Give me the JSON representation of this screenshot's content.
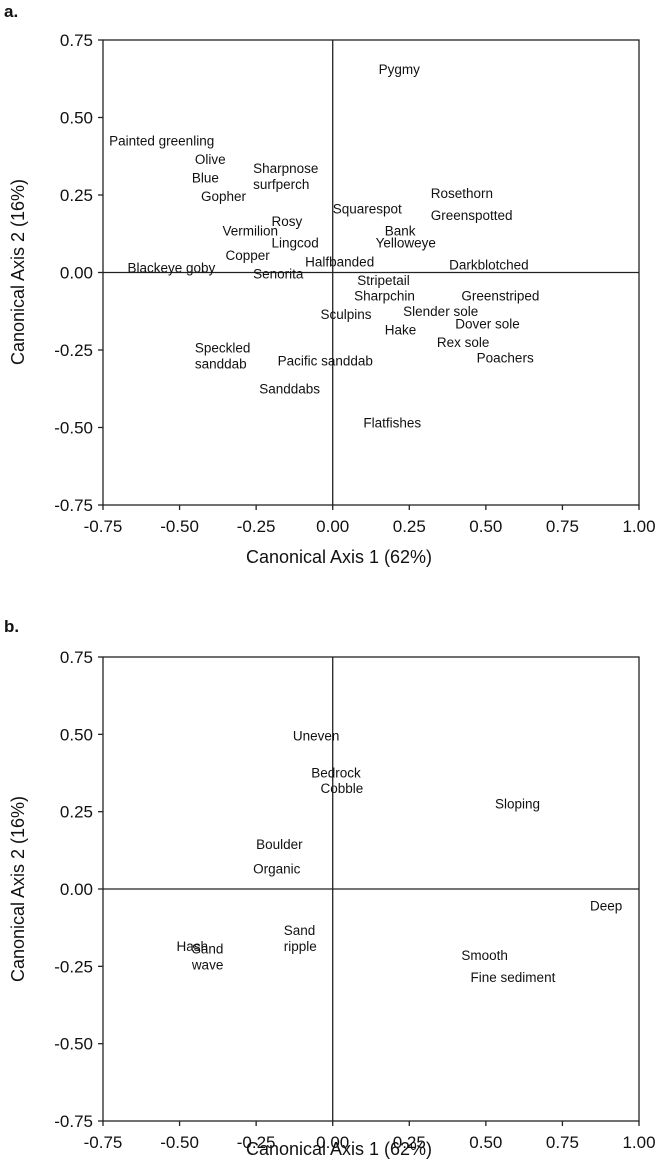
{
  "chart_data": [
    {
      "type": "scatter",
      "panel": "a.",
      "xlabel": "Canonical Axis 1 (62%)",
      "ylabel": "Canonical Axis 2 (16%)",
      "xlim": [
        -0.75,
        1.0
      ],
      "ylim": [
        -0.75,
        0.75
      ],
      "xticks": [
        "-0.75",
        "-0.50",
        "-0.25",
        "0.00",
        "0.25",
        "0.50",
        "0.75",
        "1.00"
      ],
      "yticks": [
        "0.75",
        "0.50",
        "0.25",
        "0.00",
        "-0.25",
        "-0.50",
        "-0.75"
      ],
      "grid": false,
      "labels": [
        {
          "lines": [
            "Pygmy"
          ],
          "x": 0.15,
          "y": 0.64
        },
        {
          "lines": [
            "Painted greenling"
          ],
          "x": -0.73,
          "y": 0.41
        },
        {
          "lines": [
            "Olive"
          ],
          "x": -0.45,
          "y": 0.35
        },
        {
          "lines": [
            "Blue"
          ],
          "x": -0.46,
          "y": 0.29
        },
        {
          "lines": [
            "Sharpnose",
            "surfperch"
          ],
          "x": -0.26,
          "y": 0.27
        },
        {
          "lines": [
            "Gopher"
          ],
          "x": -0.43,
          "y": 0.23
        },
        {
          "lines": [
            "Rosethorn"
          ],
          "x": 0.32,
          "y": 0.24
        },
        {
          "lines": [
            "Rosy"
          ],
          "x": -0.2,
          "y": 0.15
        },
        {
          "lines": [
            "Squarespot"
          ],
          "x": 0.0,
          "y": 0.19
        },
        {
          "lines": [
            "Greenspotted"
          ],
          "x": 0.32,
          "y": 0.17
        },
        {
          "lines": [
            "Vermilion"
          ],
          "x": -0.36,
          "y": 0.12
        },
        {
          "lines": [
            "Bank"
          ],
          "x": 0.17,
          "y": 0.12
        },
        {
          "lines": [
            "Lingcod"
          ],
          "x": -0.2,
          "y": 0.08
        },
        {
          "lines": [
            "Yelloweye"
          ],
          "x": 0.14,
          "y": 0.08
        },
        {
          "lines": [
            "Copper"
          ],
          "x": -0.35,
          "y": 0.04
        },
        {
          "lines": [
            "Halfbanded"
          ],
          "x": -0.09,
          "y": 0.02
        },
        {
          "lines": [
            "Darkblotched"
          ],
          "x": 0.38,
          "y": 0.01
        },
        {
          "lines": [
            "Blackeye goby"
          ],
          "x": -0.67,
          "y": 0.0
        },
        {
          "lines": [
            "Senorita"
          ],
          "x": -0.26,
          "y": -0.02
        },
        {
          "lines": [
            "Stripetail"
          ],
          "x": 0.08,
          "y": -0.04
        },
        {
          "lines": [
            "Sharpchin"
          ],
          "x": 0.07,
          "y": -0.09
        },
        {
          "lines": [
            "Greenstriped"
          ],
          "x": 0.42,
          "y": -0.09
        },
        {
          "lines": [
            "Slender sole"
          ],
          "x": 0.23,
          "y": -0.14
        },
        {
          "lines": [
            "Sculpins"
          ],
          "x": -0.04,
          "y": -0.15
        },
        {
          "lines": [
            "Dover sole"
          ],
          "x": 0.4,
          "y": -0.18
        },
        {
          "lines": [
            "Hake"
          ],
          "x": 0.17,
          "y": -0.2
        },
        {
          "lines": [
            "Rex sole"
          ],
          "x": 0.34,
          "y": -0.24
        },
        {
          "lines": [
            "Poachers"
          ],
          "x": 0.47,
          "y": -0.29
        },
        {
          "lines": [
            "Pacific sanddab"
          ],
          "x": -0.18,
          "y": -0.3
        },
        {
          "lines": [
            "Speckled",
            "sanddab"
          ],
          "x": -0.45,
          "y": -0.31
        },
        {
          "lines": [
            "Sanddabs"
          ],
          "x": -0.24,
          "y": -0.39
        },
        {
          "lines": [
            "Flatfishes"
          ],
          "x": 0.1,
          "y": -0.5
        }
      ]
    },
    {
      "type": "scatter",
      "panel": "b.",
      "xlabel": "Canonical Axis 1 (62%)",
      "ylabel": "Canonical Axis 2 (16%)",
      "xlim": [
        -0.75,
        1.0
      ],
      "ylim": [
        -0.75,
        0.75
      ],
      "xticks": [
        "-0.75",
        "-0.50",
        "-0.25",
        "0.00",
        "0.25",
        "0.50",
        "0.75",
        "1.00"
      ],
      "yticks": [
        "0.75",
        "0.50",
        "0.25",
        "0.00",
        "-0.25",
        "-0.50",
        "-0.75"
      ],
      "grid": false,
      "labels": [
        {
          "lines": [
            "Uneven"
          ],
          "x": -0.13,
          "y": 0.48
        },
        {
          "lines": [
            "Bedrock"
          ],
          "x": -0.07,
          "y": 0.36
        },
        {
          "lines": [
            "Cobble"
          ],
          "x": -0.04,
          "y": 0.31
        },
        {
          "lines": [
            "Sloping"
          ],
          "x": 0.53,
          "y": 0.26
        },
        {
          "lines": [
            "Boulder"
          ],
          "x": -0.25,
          "y": 0.13
        },
        {
          "lines": [
            "Organic"
          ],
          "x": -0.26,
          "y": 0.05
        },
        {
          "lines": [
            "Deep"
          ],
          "x": 0.84,
          "y": -0.07
        },
        {
          "lines": [
            "Hash"
          ],
          "x": -0.51,
          "y": -0.2
        },
        {
          "lines": [
            "Sand",
            "ripple"
          ],
          "x": -0.16,
          "y": -0.2
        },
        {
          "lines": [
            "Smooth"
          ],
          "x": 0.42,
          "y": -0.23
        },
        {
          "lines": [
            "Sand",
            "wave"
          ],
          "x": -0.46,
          "y": -0.26
        },
        {
          "lines": [
            "Fine sediment"
          ],
          "x": 0.45,
          "y": -0.3
        }
      ]
    }
  ]
}
